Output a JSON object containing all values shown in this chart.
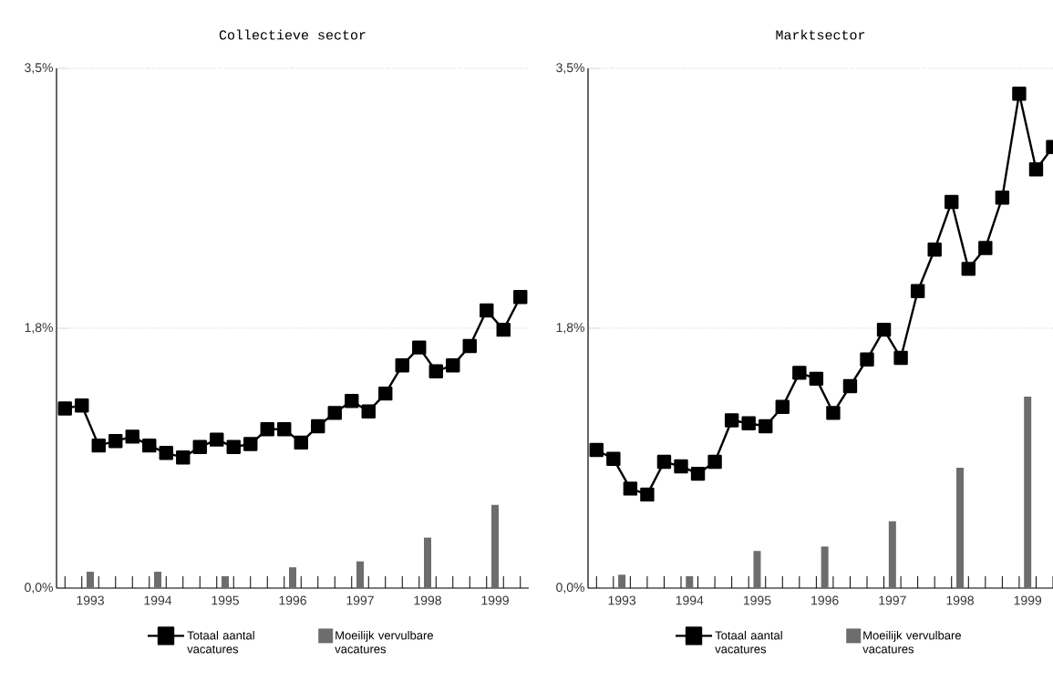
{
  "chart_data": [
    {
      "type": "line",
      "title": "Collectieve sector",
      "series": [
        {
          "name": "Totaal aantal vacatures",
          "color": "#000000",
          "x": [
            1992.625,
            1992.875,
            1993.125,
            1993.375,
            1993.625,
            1993.875,
            1994.125,
            1994.375,
            1994.625,
            1994.875,
            1995.125,
            1995.375,
            1995.625,
            1995.875,
            1996.125,
            1996.375,
            1996.625,
            1996.875,
            1997.125,
            1997.375,
            1997.625,
            1997.875,
            1998.125,
            1998.375,
            1998.625,
            1998.875,
            1999.125,
            1999.375
          ],
          "values": [
            1.21,
            1.23,
            0.96,
            0.99,
            1.02,
            0.96,
            0.91,
            0.88,
            0.95,
            1.0,
            0.95,
            0.97,
            1.07,
            1.07,
            0.98,
            1.09,
            1.18,
            1.26,
            1.19,
            1.31,
            1.5,
            1.62,
            1.46,
            1.5,
            1.63,
            1.87,
            1.74,
            1.96
          ]
        },
        {
          "name": "Moeilijk vervulbare vacatures",
          "type": "bar",
          "color": "#6d6d6d",
          "x": [
            1993,
            1994,
            1995,
            1996,
            1997,
            1998,
            1999
          ],
          "values": [
            0.11,
            0.11,
            0.08,
            0.14,
            0.18,
            0.34,
            0.56
          ]
        }
      ],
      "xlim": [
        1992.5,
        1999.5
      ],
      "xticks": [
        1993,
        1994,
        1995,
        1996,
        1997,
        1998,
        1999,
        {
          "value": 1992.625,
          "label": null
        },
        {
          "value": 1992.875,
          "label": null
        },
        {
          "value": 1993.125,
          "label": null
        },
        {
          "value": 1993.375,
          "label": null
        },
        {
          "value": 1993.625,
          "label": null
        },
        {
          "value": 1993.875,
          "label": null
        },
        {
          "value": 1994.125,
          "label": null
        },
        {
          "value": 1994.375,
          "label": null
        },
        {
          "value": 1994.625,
          "label": null
        },
        {
          "value": 1994.875,
          "label": null
        },
        {
          "value": 1995.125,
          "label": null
        },
        {
          "value": 1995.375,
          "label": null
        },
        {
          "value": 1995.625,
          "label": null
        },
        {
          "value": 1995.875,
          "label": null
        },
        {
          "value": 1996.125,
          "label": null
        },
        {
          "value": 1996.375,
          "label": null
        },
        {
          "value": 1996.625,
          "label": null
        },
        {
          "value": 1996.875,
          "label": null
        },
        {
          "value": 1997.125,
          "label": null
        },
        {
          "value": 1997.375,
          "label": null
        },
        {
          "value": 1997.625,
          "label": null
        },
        {
          "value": 1997.875,
          "label": null
        },
        {
          "value": 1998.125,
          "label": null
        },
        {
          "value": 1998.375,
          "label": null
        },
        {
          "value": 1998.625,
          "label": null
        },
        {
          "value": 1998.875,
          "label": null
        },
        {
          "value": 1999.125,
          "label": null
        },
        {
          "value": 1999.375,
          "label": null
        }
      ],
      "ylim": [
        0,
        3.5
      ],
      "yticks": [
        {
          "value": 0,
          "label": "0,0%"
        },
        {
          "value": 1.75,
          "label": "1,8%"
        },
        {
          "value": 3.5,
          "label": "3,5%"
        }
      ],
      "grid": "y",
      "legend": "bottom",
      "marker": "square",
      "line_style": "solid"
    },
    {
      "type": "line",
      "title": "Marktsector",
      "series": [
        {
          "name": "Totaal aantal vacatures",
          "color": "#000000",
          "x": [
            1992.625,
            1992.875,
            1993.125,
            1993.375,
            1993.625,
            1993.875,
            1994.125,
            1994.375,
            1994.625,
            1994.875,
            1995.125,
            1995.375,
            1995.625,
            1995.875,
            1996.125,
            1996.375,
            1996.625,
            1996.875,
            1997.125,
            1997.375,
            1997.625,
            1997.875,
            1998.125,
            1998.375,
            1998.625,
            1998.875,
            1999.125,
            1999.375
          ],
          "values": [
            0.93,
            0.87,
            0.67,
            0.63,
            0.85,
            0.82,
            0.77,
            0.85,
            1.13,
            1.11,
            1.09,
            1.22,
            1.45,
            1.41,
            1.18,
            1.36,
            1.54,
            1.74,
            1.55,
            2.0,
            2.28,
            2.6,
            2.15,
            2.29,
            2.63,
            3.33,
            2.82,
            2.97
          ]
        },
        {
          "name": "Moeilijk vervulbare vacatures",
          "type": "bar",
          "color": "#6d6d6d",
          "x": [
            1993,
            1994,
            1995,
            1996,
            1997,
            1998,
            1999
          ],
          "values": [
            0.09,
            0.08,
            0.25,
            0.28,
            0.45,
            0.81,
            1.29
          ]
        }
      ],
      "xlim": [
        1992.5,
        1999.375
      ],
      "xticks": [
        1993,
        1994,
        1995,
        1996,
        1997,
        1998,
        1999,
        {
          "value": 1992.625,
          "label": null
        },
        {
          "value": 1992.875,
          "label": null
        },
        {
          "value": 1993.125,
          "label": null
        },
        {
          "value": 1993.375,
          "label": null
        },
        {
          "value": 1993.625,
          "label": null
        },
        {
          "value": 1993.875,
          "label": null
        },
        {
          "value": 1994.125,
          "label": null
        },
        {
          "value": 1994.375,
          "label": null
        },
        {
          "value": 1994.625,
          "label": null
        },
        {
          "value": 1994.875,
          "label": null
        },
        {
          "value": 1995.125,
          "label": null
        },
        {
          "value": 1995.375,
          "label": null
        },
        {
          "value": 1995.625,
          "label": null
        },
        {
          "value": 1995.875,
          "label": null
        },
        {
          "value": 1996.125,
          "label": null
        },
        {
          "value": 1996.375,
          "label": null
        },
        {
          "value": 1996.625,
          "label": null
        },
        {
          "value": 1996.875,
          "label": null
        },
        {
          "value": 1997.125,
          "label": null
        },
        {
          "value": 1997.375,
          "label": null
        },
        {
          "value": 1997.625,
          "label": null
        },
        {
          "value": 1997.875,
          "label": null
        },
        {
          "value": 1998.125,
          "label": null
        },
        {
          "value": 1998.375,
          "label": null
        },
        {
          "value": 1998.625,
          "label": null
        },
        {
          "value": 1998.875,
          "label": null
        },
        {
          "value": 1999.125,
          "label": null
        },
        {
          "value": 1999.375,
          "label": null
        }
      ],
      "ylim": [
        0,
        3.5
      ],
      "yticks": [
        {
          "value": 0,
          "label": "0,0%"
        },
        {
          "value": 1.75,
          "label": "1,8%"
        },
        {
          "value": 3.5,
          "label": "3,5%"
        }
      ],
      "grid": "y",
      "legend": "bottom",
      "marker": "square",
      "line_style": "solid"
    }
  ]
}
